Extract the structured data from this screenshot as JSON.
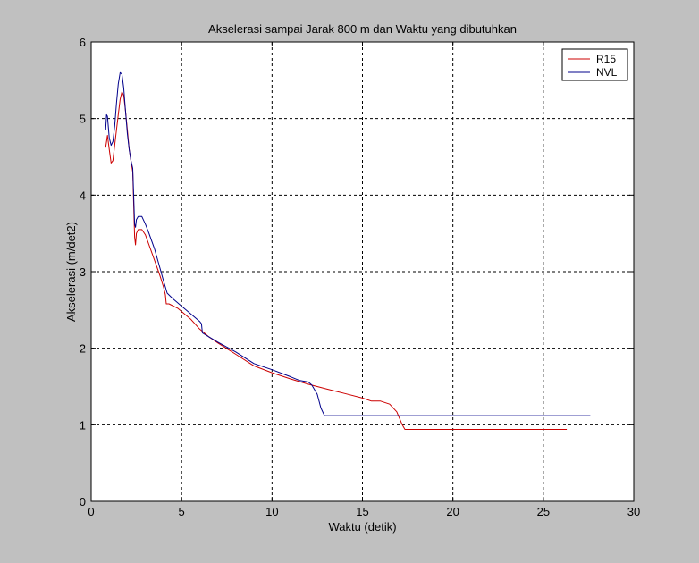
{
  "chart_data": {
    "type": "line",
    "title": "Akselerasi sampai Jarak 800 m dan Waktu yang dibutuhkan",
    "xlabel": "Waktu (detik)",
    "ylabel": "Akselerasi (m/det2)",
    "xlim": [
      0,
      30
    ],
    "ylim": [
      0,
      6
    ],
    "xticks": [
      0,
      5,
      10,
      15,
      20,
      25,
      30
    ],
    "yticks": [
      0,
      1,
      2,
      3,
      4,
      5,
      6
    ],
    "grid": true,
    "legend_position": "top-right",
    "series": [
      {
        "name": "R15",
        "color": "#cc0000",
        "x": [
          0.8,
          0.9,
          1.0,
          1.1,
          1.2,
          1.3,
          1.4,
          1.5,
          1.6,
          1.7,
          1.8,
          1.9,
          2.0,
          2.1,
          2.2,
          2.3,
          2.4,
          2.45,
          2.5,
          2.6,
          2.8,
          3.0,
          3.2,
          3.5,
          3.8,
          4.0,
          4.1,
          4.15,
          4.3,
          4.8,
          5.5,
          6.0,
          6.5,
          7.0,
          8.0,
          9.0,
          10.0,
          11.0,
          12.0,
          12.5,
          13.0,
          14.0,
          15.0,
          15.5,
          16.0,
          16.5,
          16.9,
          17.2,
          17.35,
          18.0,
          20.0,
          22.0,
          24.0,
          26.3
        ],
        "y": [
          4.62,
          4.78,
          4.6,
          4.42,
          4.45,
          4.65,
          4.85,
          5.05,
          5.25,
          5.35,
          5.3,
          5.1,
          4.85,
          4.6,
          4.45,
          4.3,
          3.45,
          3.35,
          3.5,
          3.55,
          3.55,
          3.48,
          3.35,
          3.15,
          2.95,
          2.8,
          2.7,
          2.58,
          2.58,
          2.52,
          2.38,
          2.25,
          2.15,
          2.07,
          1.92,
          1.77,
          1.68,
          1.6,
          1.53,
          1.5,
          1.47,
          1.41,
          1.35,
          1.31,
          1.31,
          1.27,
          1.17,
          1.0,
          0.94,
          0.94,
          0.94,
          0.94,
          0.94,
          0.94
        ]
      },
      {
        "name": "NVL",
        "color": "#00008b",
        "x": [
          0.8,
          0.85,
          0.9,
          1.0,
          1.1,
          1.2,
          1.3,
          1.4,
          1.5,
          1.6,
          1.7,
          1.8,
          1.9,
          2.0,
          2.1,
          2.2,
          2.3,
          2.4,
          2.45,
          2.5,
          2.6,
          2.8,
          3.0,
          3.2,
          3.5,
          3.8,
          4.0,
          4.1,
          4.2,
          4.5,
          5.0,
          5.5,
          6.0,
          6.1,
          6.15,
          6.5,
          7.0,
          8.0,
          9.0,
          10.0,
          11.0,
          11.5,
          12.0,
          12.2,
          12.5,
          12.7,
          12.9,
          13.5,
          15.0,
          20.0,
          25.0,
          27.6
        ],
        "y": [
          4.85,
          5.05,
          5.03,
          4.75,
          4.65,
          4.7,
          4.9,
          5.2,
          5.45,
          5.6,
          5.58,
          5.4,
          5.1,
          4.8,
          4.6,
          4.45,
          4.35,
          3.62,
          3.58,
          3.68,
          3.72,
          3.72,
          3.62,
          3.5,
          3.3,
          3.05,
          2.88,
          2.8,
          2.72,
          2.65,
          2.55,
          2.45,
          2.35,
          2.32,
          2.2,
          2.15,
          2.08,
          1.95,
          1.8,
          1.72,
          1.63,
          1.58,
          1.56,
          1.52,
          1.4,
          1.22,
          1.12,
          1.12,
          1.12,
          1.12,
          1.12,
          1.12
        ]
      }
    ]
  }
}
